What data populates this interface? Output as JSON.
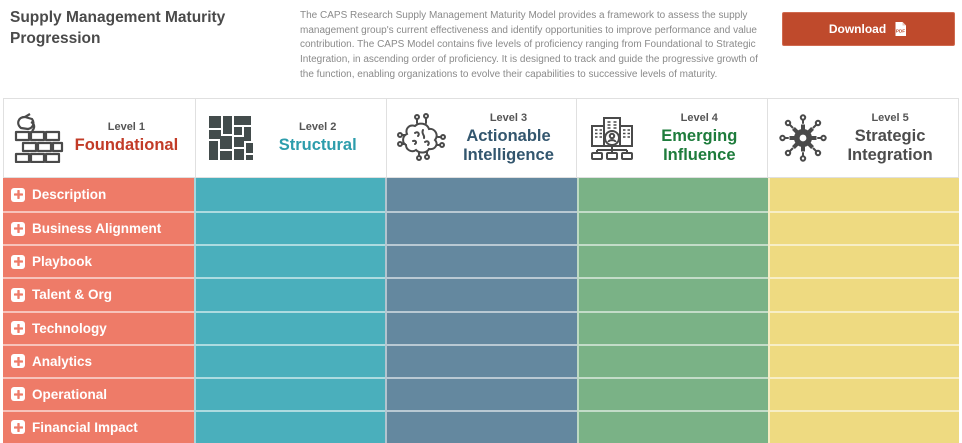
{
  "header": {
    "title": "Supply Management Maturity Progression",
    "description": "The CAPS Research Supply Management Maturity Model provides a framework to assess the supply management group's current effectiveness and identify opportunities to improve performance and value contribution. The CAPS Model contains five levels of proficiency ranging from Foundational to Strategic Integration, in ascending order of proficiency. It is designed to track and guide the progressive growth of the function, enabling organizations to evolve their capabilities to successive levels of maturity.",
    "download_label": "Download",
    "download_color": "#bf4a2c"
  },
  "levels": [
    {
      "level": "Level 1",
      "name": "Foundational",
      "icon": "bricks-icon",
      "text_color": "#c23b27",
      "cell_color": "#ee7b68"
    },
    {
      "level": "Level 2",
      "name": "Structural",
      "icon": "mosaic-icon",
      "text_color": "#2d9dac",
      "cell_color": "#4aafbc"
    },
    {
      "level": "Level 3",
      "name": "Actionable Intelligence",
      "icon": "circuit-brain-icon",
      "text_color": "#33566e",
      "cell_color": "#64889f"
    },
    {
      "level": "Level 4",
      "name": "Emerging Influence",
      "icon": "organization-icon",
      "text_color": "#1e7c3c",
      "cell_color": "#7ab286"
    },
    {
      "level": "Level 5",
      "name": "Strategic Integration",
      "icon": "gear-circuit-icon",
      "text_color": "#4d4d4d",
      "cell_color": "#eeda81"
    }
  ],
  "rows": [
    "Description",
    "Business Alignment",
    "Playbook",
    "Talent & Org",
    "Technology",
    "Analytics",
    "Operational",
    "Financial Impact"
  ]
}
